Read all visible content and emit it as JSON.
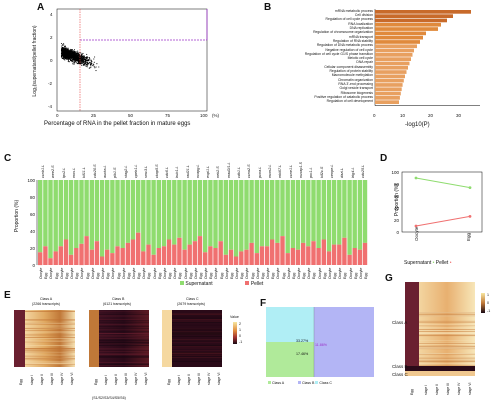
{
  "panels": {
    "a": "A",
    "b": "B",
    "c": "C",
    "d": "D",
    "e": "E",
    "f": "F",
    "g": "G"
  },
  "panel_a": {
    "ylabel": "Log₂(supernatant/pellet fraction)",
    "xlabel": "Percentage of RNA in the pellet fraction in mature eggs",
    "xunit": "(%)",
    "xticks": [
      "0",
      "25",
      "50",
      "75",
      "100"
    ],
    "yticks": [
      "4",
      "2",
      "0",
      "-2",
      "-4"
    ],
    "colors": {
      "points": "#000000",
      "guide": "#9b30c8",
      "redline": "#e64040"
    }
  },
  "panel_b": {
    "xlabel": "-log10(P)",
    "xticks": [
      "0",
      "10",
      "20",
      "30"
    ],
    "bar_color": "#e08a3c",
    "chart_data": {
      "type": "bar",
      "orientation": "horizontal",
      "categories": [
        "mRNA metabolic process",
        "Cell division",
        "Regulation of cell cycle process",
        "RNA localization",
        "DNA replication",
        "Regulation of chromosome organization",
        "mRNA transport",
        "Regulation of RNA stability",
        "Regulation of DNA metabolic process",
        "Negative regulation of cell cycle",
        "Regulation of cell cycle G1/S phase transition",
        "Meiotic cell cycle",
        "DNA repair",
        "Cellular component disassembly",
        "Regulation of protein stability",
        "Macromolecule methylation",
        "Chromatin organization",
        "RNA 3'-end processing",
        "Golgi vesicle transport",
        "Ribosome biogenesis",
        "Positive regulation of catabolic process",
        "Regulation of cell development"
      ],
      "values": [
        32,
        26,
        24,
        22,
        21,
        17,
        16,
        15,
        14,
        13,
        12.5,
        12,
        11.5,
        11,
        10.5,
        10,
        9.6,
        9.2,
        8.9,
        8.6,
        8.3,
        8
      ],
      "xlim": [
        0,
        35
      ]
    }
  },
  "panel_c": {
    "ylabel": "Proportion (%)",
    "yticks": [
      "0",
      "20",
      "40",
      "60",
      "80",
      "100"
    ],
    "legend_sup": "Supernatant",
    "legend_pel": "Pellet",
    "colors": {
      "sup": "#8fdc6f",
      "pel": "#f07070"
    },
    "genes": [
      "ccnb1.L",
      "wee2.S",
      "tpx2.L",
      "mos.L",
      "kif11.L",
      "cdc20.S",
      "aurka.L",
      "plk1.S",
      "stag2.L",
      "cpeb1.L",
      "smc3.L",
      "ckap5.S",
      "cdc6.L",
      "bub1.L",
      "rad21.L",
      "ncapg.L",
      "espl1.L",
      "nek2.S",
      "mad2l1.L",
      "cdk1.L",
      "ccna2.S",
      "pcna.L",
      "mcm2.L",
      "mki67.L",
      "ccne1.L",
      "nusap1.S",
      "prc1.L",
      "kif2c.S",
      "cenpe.L",
      "dazl.L",
      "btg4.L",
      "cdc25.L"
    ],
    "stage_a": "Oocyte",
    "stage_b": "Egg",
    "chart_data": {
      "type": "bar",
      "stacked": true,
      "pellet_oocyte": [
        15,
        8,
        22,
        12,
        25,
        18,
        10,
        14,
        20,
        30,
        16,
        12,
        22,
        24,
        18,
        28,
        15,
        20,
        12,
        10,
        18,
        14,
        22,
        26,
        14,
        18,
        22,
        20,
        16,
        24,
        12,
        18
      ],
      "pellet_egg": [
        22,
        16,
        30,
        20,
        34,
        28,
        18,
        22,
        26,
        38,
        24,
        20,
        30,
        32,
        24,
        34,
        22,
        28,
        18,
        16,
        26,
        22,
        30,
        34,
        20,
        26,
        28,
        30,
        24,
        32,
        20,
        26
      ],
      "ylim": [
        0,
        100
      ]
    }
  },
  "panel_d": {
    "ylabel": "Proportion (%)",
    "yticks": [
      "0",
      "20",
      "40",
      "60",
      "80",
      "100"
    ],
    "xcats": [
      "Oocyte",
      "Egg"
    ],
    "legend_sup": "Supernatant",
    "legend_pel": "Pellet",
    "colors": {
      "sup": "#8fdc6f",
      "pel": "#f07070"
    },
    "chart_data": {
      "type": "line",
      "categories": [
        "Oocyte",
        "Egg"
      ],
      "series": [
        {
          "name": "Supernatant",
          "values": [
            90,
            74
          ]
        },
        {
          "name": "Pellet",
          "values": [
            10,
            26
          ]
        }
      ],
      "ylim": [
        0,
        100
      ]
    }
  },
  "panel_e": {
    "class_a": "Class A",
    "class_a_n": "(2266 transcripts)",
    "class_b": "Class B",
    "class_b_n": "(6121 transcripts)",
    "class_c": "Class C",
    "class_c_n": "(2679 transcripts)",
    "legend_title": "Value",
    "legend_ticks": [
      "2",
      "1",
      "0",
      "-1"
    ],
    "xcats": [
      "Egg",
      "stage I",
      "stage II",
      "stage III",
      "stage IV",
      "stage VI"
    ],
    "note": "(S1/S2/S3/S4/S5/S6)",
    "colors": {
      "low": "#1a0a14",
      "mid": "#a03030",
      "high": "#f7e6a0"
    }
  },
  "panel_f": {
    "val1": "33.27%",
    "val2": "17.46%",
    "val3": "11.86%",
    "leg1": "Class A",
    "leg2": "Class B",
    "leg3": "Class C",
    "colors": {
      "a": "#b0ea9a",
      "b": "#b3b5f5",
      "c": "#b0eef5"
    }
  },
  "panel_g": {
    "class_a": "Class A",
    "class_b": "Class B",
    "class_c": "Class C",
    "legend_ticks": [
      "1",
      "0",
      "-1"
    ],
    "xcats": [
      "Egg",
      "stage I",
      "stage II",
      "stage III",
      "stage IV",
      "stage VI"
    ]
  }
}
